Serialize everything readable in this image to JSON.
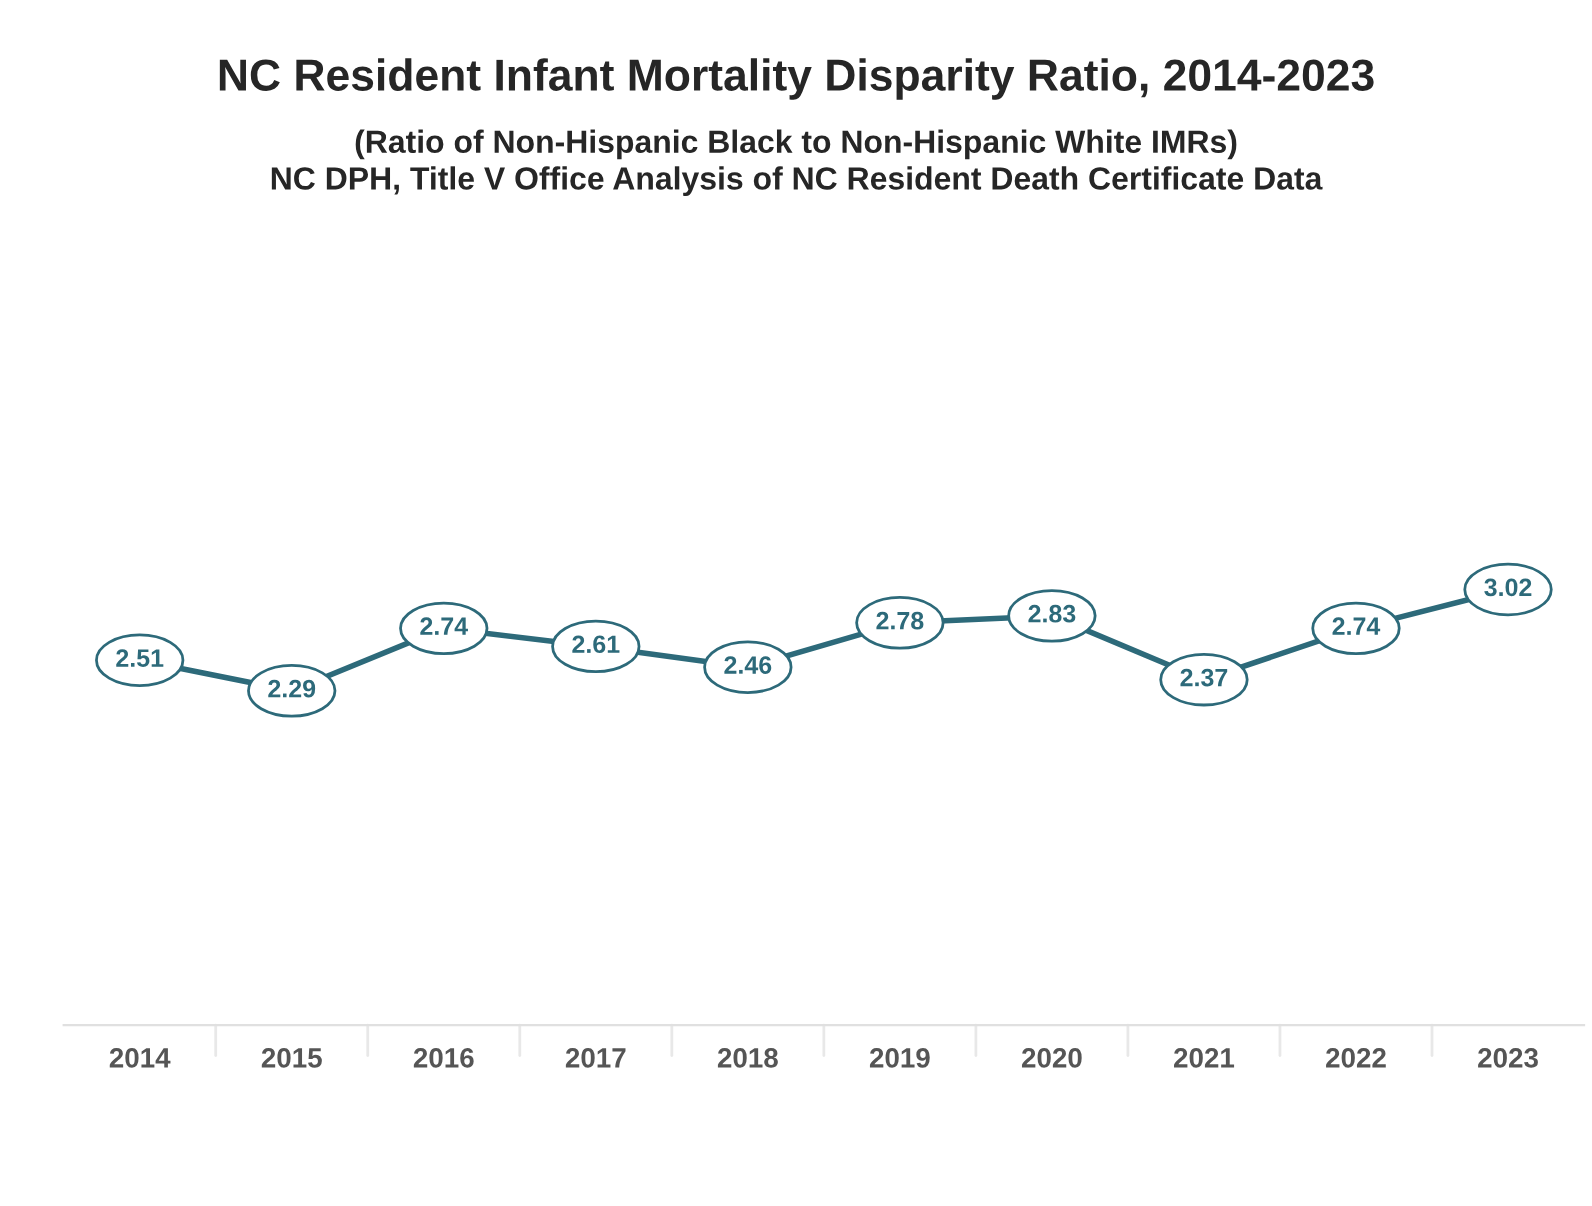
{
  "chart_data": {
    "type": "line",
    "title": "NC Resident Infant Mortality Disparity Ratio, 2014-2023",
    "subtitle": "(Ratio of Non-Hispanic Black to Non-Hispanic White IMRs)\nNC DPH, Title V Office Analysis of NC Resident Death Certificate Data",
    "categories": [
      "2014",
      "2015",
      "2016",
      "2017",
      "2018",
      "2019",
      "2020",
      "2021",
      "2022",
      "2023"
    ],
    "series": [
      {
        "color": "#2d6a7a",
        "values": [
          2.51,
          2.29,
          2.74,
          2.61,
          2.46,
          2.78,
          2.83,
          2.37,
          2.74,
          3.02
        ]
      }
    ],
    "data_labels": true,
    "tick_labels": "x",
    "grid": false,
    "legend": false,
    "marker": "circle",
    "line_style": "solid"
  }
}
